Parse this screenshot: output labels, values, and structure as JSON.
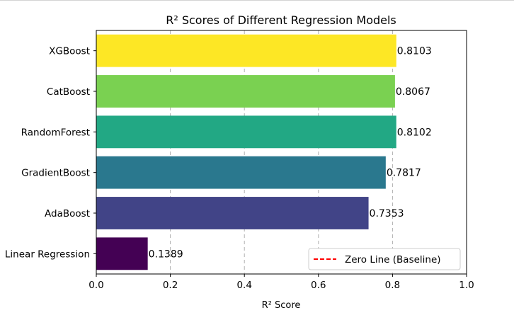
{
  "chart_data": {
    "type": "bar",
    "orientation": "horizontal",
    "title": "R² Scores of Different Regression Models",
    "xlabel": "R² Score",
    "ylabel": "",
    "xlim": [
      0.0,
      1.0
    ],
    "xticks": [
      "0.0",
      "0.2",
      "0.4",
      "0.6",
      "0.8",
      "1.0"
    ],
    "categories": [
      "XGBoost",
      "CatBoost",
      "RandomForest",
      "GradientBoost",
      "AdaBoost",
      "Linear Regression"
    ],
    "values": [
      0.8103,
      0.8067,
      0.8102,
      0.7817,
      0.7353,
      0.1389
    ],
    "value_labels": [
      "0.8103",
      "0.8067",
      "0.8102",
      "0.7817",
      "0.7353",
      "0.1389"
    ],
    "colors": [
      "#fde725",
      "#7ad151",
      "#22a884",
      "#2a788e",
      "#414487",
      "#440154"
    ],
    "grid": "x-axis dashed",
    "legend": {
      "placement": "lower-right",
      "entries": [
        {
          "label": "Zero Line (Baseline)",
          "color": "#ff0000",
          "style": "dashed"
        }
      ]
    }
  }
}
